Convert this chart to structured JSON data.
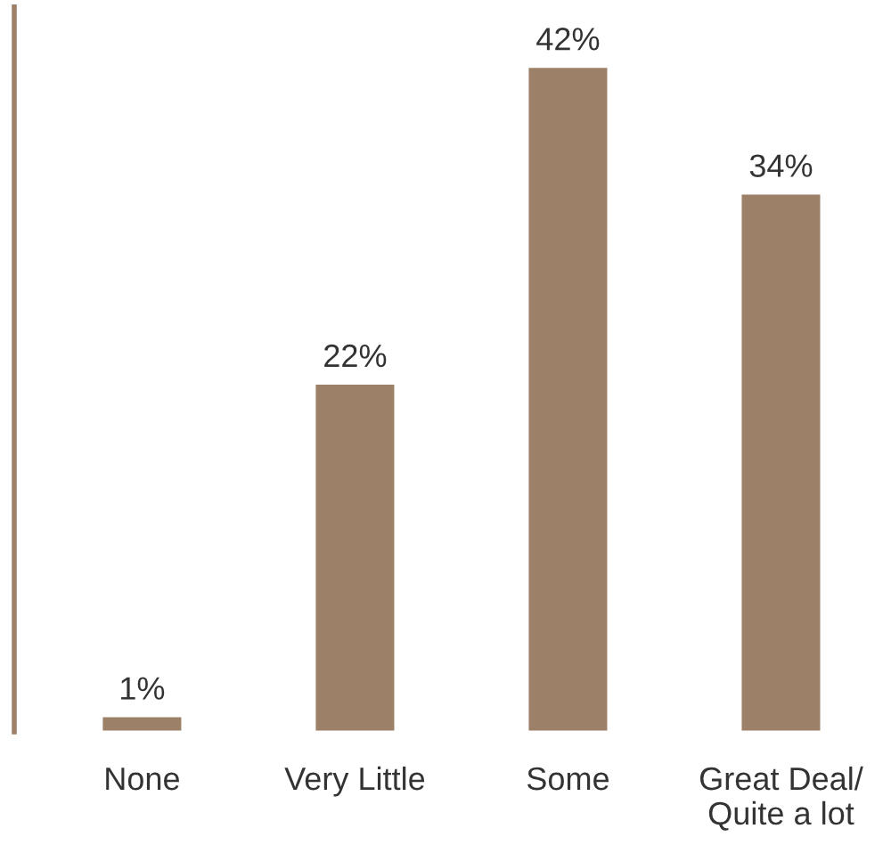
{
  "chart_data": {
    "type": "bar",
    "categories": [
      "None",
      "Very Little",
      "Some",
      "Great Deal/\nQuite a lot"
    ],
    "values": [
      1,
      22,
      42,
      34
    ],
    "color": "#9c8068",
    "data_labels": true,
    "value_labels": [
      "1%",
      "22%",
      "42%",
      "34%"
    ],
    "grid": false,
    "legend": false
  }
}
